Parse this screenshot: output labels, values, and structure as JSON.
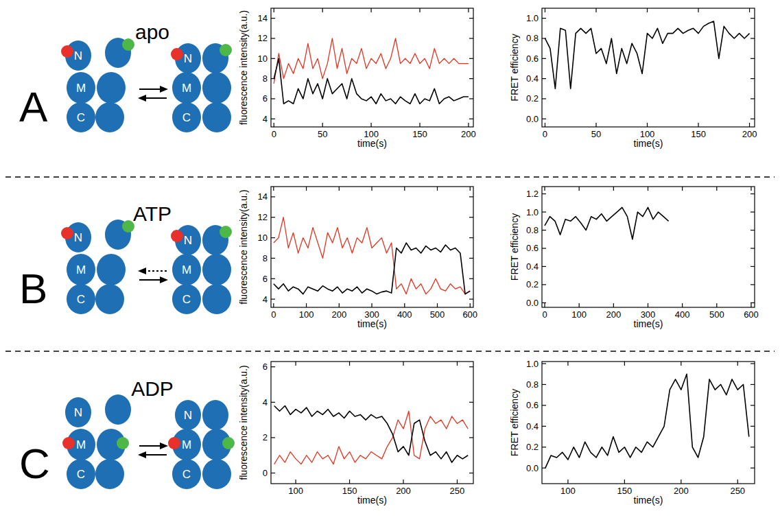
{
  "panels": [
    {
      "letter": "A",
      "condition": "apo",
      "domains": [
        "N",
        "M",
        "C"
      ],
      "labeled_domain": "N",
      "back_arrow_line_style": "solid"
    },
    {
      "letter": "B",
      "condition": "ATP",
      "domains": [
        "N",
        "M",
        "C"
      ],
      "labeled_domain": "N",
      "back_arrow_line_style": "dotted"
    },
    {
      "letter": "C",
      "condition": "ADP",
      "domains": [
        "N",
        "M",
        "C"
      ],
      "labeled_domain": "M",
      "back_arrow_line_style": "solid"
    }
  ],
  "chart_data": [
    {
      "type": "line",
      "xlabel": "time(s)",
      "ylabel": "fluorescence intensity(a.u.)",
      "x": [
        0,
        5,
        10,
        15,
        20,
        25,
        30,
        35,
        40,
        45,
        50,
        55,
        60,
        65,
        70,
        75,
        80,
        85,
        90,
        95,
        100,
        105,
        110,
        115,
        120,
        125,
        130,
        135,
        140,
        145,
        150,
        155,
        160,
        165,
        170,
        175,
        180,
        185,
        190,
        195,
        200
      ],
      "series": [
        {
          "color": "#e8321e",
          "values": [
            7.5,
            10.5,
            8,
            9.5,
            8.5,
            10,
            9,
            11.5,
            9,
            10,
            8,
            9.5,
            12,
            9,
            11,
            8.5,
            10,
            9.5,
            11,
            9,
            10,
            9.5,
            10.5,
            9,
            10,
            12,
            9.5,
            10,
            9.5,
            10.5,
            9.5,
            10,
            9,
            11,
            9.5,
            10,
            9.5,
            10,
            9.5,
            9.5,
            9.5
          ]
        },
        {
          "color": "#000000",
          "values": [
            8,
            10,
            5.5,
            5.8,
            5.5,
            7,
            6,
            8,
            6.5,
            7.5,
            6,
            8,
            6.5,
            7,
            7.5,
            6,
            8,
            6.5,
            6,
            5.8,
            6.2,
            5.5,
            6.5,
            5.8,
            6,
            5.5,
            6.2,
            5.8,
            5.5,
            6.5,
            5.5,
            6,
            5.8,
            7,
            5.5,
            6,
            6.2,
            5.8,
            6,
            6.2,
            6.2
          ]
        }
      ],
      "xlim": [
        -3,
        205
      ],
      "ylim": [
        3.2,
        15
      ],
      "xticks": [
        0,
        50,
        100,
        150,
        200
      ],
      "yticks": [
        4,
        6,
        8,
        10,
        12,
        14
      ]
    },
    {
      "type": "line",
      "xlabel": "time(s)",
      "ylabel": "FRET efficiency",
      "x": [
        0,
        5,
        10,
        15,
        20,
        25,
        30,
        35,
        40,
        45,
        50,
        55,
        60,
        65,
        70,
        75,
        80,
        85,
        90,
        95,
        100,
        105,
        110,
        115,
        120,
        125,
        130,
        135,
        140,
        145,
        150,
        155,
        160,
        165,
        170,
        175,
        180,
        185,
        190,
        195,
        200
      ],
      "series": [
        {
          "color": "#000000",
          "values": [
            0.8,
            0.7,
            0.3,
            0.9,
            0.88,
            0.3,
            0.85,
            0.9,
            0.85,
            0.9,
            0.65,
            0.7,
            0.55,
            0.8,
            0.45,
            0.7,
            0.55,
            0.75,
            0.65,
            0.45,
            0.85,
            0.8,
            0.9,
            0.75,
            0.85,
            0.85,
            0.9,
            0.85,
            0.88,
            0.9,
            0.85,
            0.92,
            0.95,
            0.97,
            0.6,
            0.92,
            0.85,
            0.8,
            0.85,
            0.8,
            0.85
          ]
        }
      ],
      "xlim": [
        -3,
        205
      ],
      "ylim": [
        -0.08,
        1.1
      ],
      "xticks": [
        0,
        50,
        100,
        150,
        200
      ],
      "yticks": [
        {
          "value": 0,
          "label": "0.0"
        },
        0.2,
        0.4,
        0.6,
        0.8,
        {
          "value": 1,
          "label": "1.0"
        }
      ]
    },
    {
      "type": "line",
      "xlabel": "time(s)",
      "ylabel": "fluorescence intensity(a.u.)",
      "x": [
        0,
        15,
        30,
        45,
        60,
        75,
        90,
        105,
        120,
        135,
        150,
        165,
        180,
        195,
        210,
        225,
        240,
        255,
        270,
        285,
        300,
        315,
        330,
        345,
        360,
        375,
        390,
        405,
        420,
        435,
        450,
        465,
        480,
        495,
        510,
        525,
        540,
        555,
        570,
        585,
        600
      ],
      "series": [
        {
          "color": "#e8321e",
          "values": [
            9.5,
            10,
            12,
            9,
            10.5,
            8.5,
            10,
            9,
            11,
            9.5,
            8,
            10.5,
            9.5,
            11,
            9,
            10,
            8.5,
            10,
            9.5,
            11,
            9,
            9.5,
            10,
            8.5,
            9.5,
            5,
            5.5,
            4.5,
            6,
            5,
            5.5,
            4.5,
            5,
            6,
            5,
            4.8,
            5.5,
            5,
            5.2,
            4.5,
            4.8
          ]
        },
        {
          "color": "#000000",
          "values": [
            5.5,
            5,
            5.5,
            4.8,
            5.2,
            5,
            4.5,
            5.2,
            5,
            4.8,
            5.3,
            5,
            4.8,
            5.2,
            4.6,
            5,
            4.8,
            5.2,
            4.6,
            5,
            4.8,
            4.5,
            4.7,
            4.8,
            4.6,
            9,
            8.5,
            9.5,
            8.8,
            9,
            8.5,
            9.2,
            8.8,
            9,
            8.6,
            9.3,
            8.8,
            9,
            8.5,
            4.5,
            4.8
          ]
        }
      ],
      "xlim": [
        -8,
        610
      ],
      "ylim": [
        3.2,
        15
      ],
      "xticks": [
        0,
        100,
        200,
        300,
        400,
        500,
        600
      ],
      "yticks": [
        4,
        6,
        8,
        10,
        12,
        14
      ]
    },
    {
      "type": "line",
      "xlabel": "time(s)",
      "ylabel": "FRET efficiency",
      "x": [
        0,
        15,
        30,
        45,
        60,
        75,
        90,
        105,
        120,
        135,
        150,
        165,
        180,
        195,
        210,
        225,
        240,
        255,
        270,
        285,
        300,
        315,
        330,
        345,
        360
      ],
      "series": [
        {
          "color": "#000000",
          "values": [
            0.85,
            0.95,
            0.9,
            0.75,
            0.92,
            0.9,
            0.95,
            0.88,
            0.8,
            0.95,
            0.92,
            0.98,
            0.9,
            0.95,
            1.0,
            1.05,
            0.95,
            0.7,
            1.0,
            0.95,
            1.05,
            0.92,
            1.0,
            0.95,
            0.9
          ]
        }
      ],
      "xlim": [
        -8,
        610
      ],
      "ylim": [
        -0.05,
        1.28
      ],
      "xticks": [
        0,
        100,
        200,
        300,
        400,
        500,
        600
      ],
      "yticks": [
        {
          "value": 0,
          "label": "0.0"
        },
        0.2,
        0.4,
        0.6,
        0.8,
        {
          "value": 1,
          "label": "1.0"
        },
        1.2
      ]
    },
    {
      "type": "line",
      "xlabel": "time(s)",
      "ylabel": "fluorescence intensity(a.u.)",
      "x": [
        80,
        85,
        90,
        95,
        100,
        105,
        110,
        115,
        120,
        125,
        130,
        135,
        140,
        145,
        150,
        155,
        160,
        165,
        170,
        175,
        180,
        185,
        190,
        195,
        200,
        205,
        210,
        215,
        220,
        225,
        230,
        235,
        240,
        245,
        250,
        255,
        260
      ],
      "series": [
        {
          "color": "#e8321e",
          "values": [
            0.5,
            1.0,
            0.6,
            1.2,
            0.8,
            0.5,
            1.0,
            0.6,
            1.2,
            0.8,
            1.0,
            0.5,
            1.5,
            0.8,
            1.2,
            0.6,
            1.0,
            0.8,
            1.2,
            1.0,
            0.8,
            1.5,
            2.0,
            3.0,
            2.5,
            3.5,
            1.0,
            0.8,
            2.5,
            3.2,
            2.8,
            3.0,
            2.5,
            3.2,
            2.8,
            3.0,
            2.5
          ]
        },
        {
          "color": "#000000",
          "values": [
            3.8,
            3.5,
            3.8,
            3.3,
            3.6,
            3.4,
            3.7,
            3.2,
            3.5,
            3.3,
            3.6,
            3.2,
            3.4,
            3.1,
            3.5,
            3.2,
            3.3,
            3.0,
            3.3,
            3.1,
            3.2,
            2.8,
            2.2,
            1.2,
            1.5,
            1.0,
            2.8,
            3.0,
            1.8,
            1.0,
            1.2,
            0.8,
            1.2,
            0.6,
            1.0,
            0.8,
            1.0
          ]
        }
      ],
      "xlim": [
        77,
        265
      ],
      "ylim": [
        -0.6,
        6.3
      ],
      "xticks": [
        100,
        150,
        200,
        250
      ],
      "yticks": [
        0,
        2,
        4,
        6
      ]
    },
    {
      "type": "line",
      "xlabel": "time(s)",
      "ylabel": "FRET efficiency",
      "x": [
        80,
        85,
        90,
        95,
        100,
        105,
        110,
        115,
        120,
        125,
        130,
        135,
        140,
        145,
        150,
        155,
        160,
        165,
        170,
        175,
        180,
        185,
        190,
        195,
        200,
        205,
        210,
        215,
        220,
        225,
        230,
        235,
        240,
        245,
        250,
        255,
        260
      ],
      "series": [
        {
          "color": "#000000",
          "values": [
            0.0,
            0.12,
            0.1,
            0.15,
            0.08,
            0.2,
            0.1,
            0.25,
            0.15,
            0.1,
            0.2,
            0.12,
            0.3,
            0.15,
            0.2,
            0.1,
            0.2,
            0.15,
            0.25,
            0.2,
            0.3,
            0.4,
            0.75,
            0.85,
            0.75,
            0.9,
            0.2,
            0.1,
            0.3,
            0.85,
            0.75,
            0.8,
            0.7,
            0.85,
            0.75,
            0.8,
            0.3
          ]
        }
      ],
      "xlim": [
        77,
        265
      ],
      "ylim": [
        -0.15,
        1.02
      ],
      "xticks": [
        100,
        150,
        200,
        250
      ],
      "yticks": [
        {
          "value": 0,
          "label": "0.0"
        },
        0.2,
        0.4,
        0.6,
        0.8,
        {
          "value": 1,
          "label": "1.0"
        }
      ]
    }
  ]
}
